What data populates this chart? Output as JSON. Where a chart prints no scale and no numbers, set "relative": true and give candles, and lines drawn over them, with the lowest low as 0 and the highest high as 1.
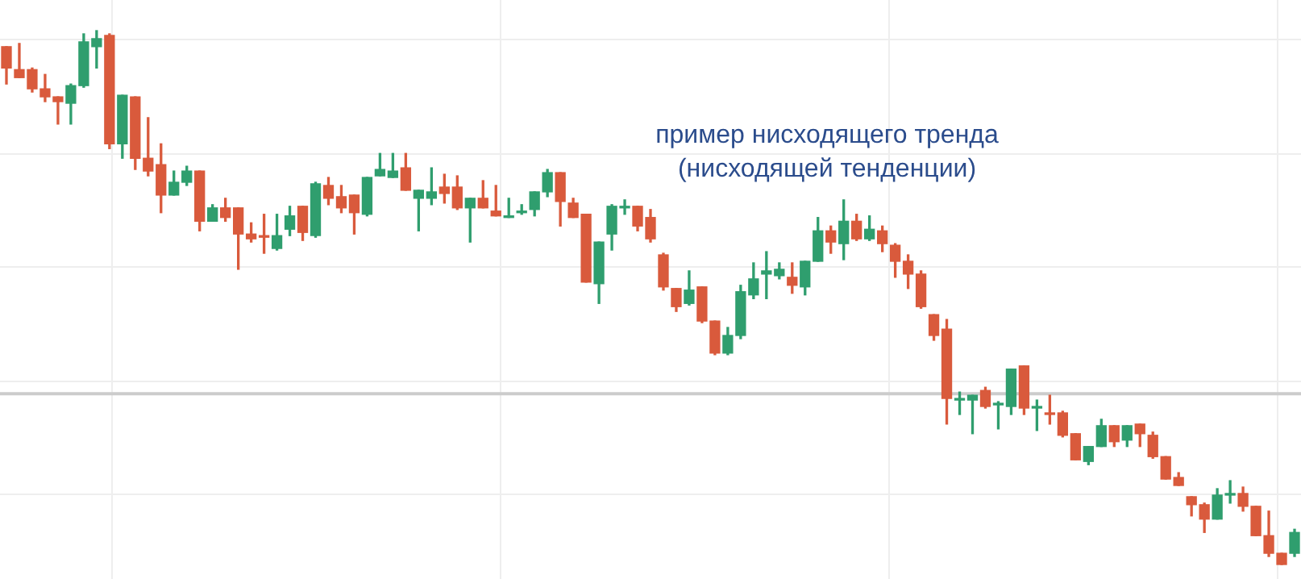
{
  "chart_data": {
    "type": "candlestick",
    "relative": true,
    "tick_labels": false,
    "grid": true,
    "legend": false,
    "annotations": [
      "пример нисходящего тренда\n(нисходящей тенденции)"
    ],
    "ref_lines": [
      {
        "axis": "y",
        "value": 0.32,
        "color": "#cccccc"
      }
    ],
    "categories": [
      null,
      null,
      null,
      null,
      null,
      null,
      null,
      null,
      null,
      null,
      null,
      null,
      null,
      null,
      null,
      null,
      null,
      null,
      null,
      null,
      null,
      null,
      null,
      null,
      null,
      null,
      null,
      null,
      null,
      null,
      null,
      null,
      null,
      null,
      null,
      null,
      null,
      null,
      null,
      null,
      null,
      null,
      null,
      null,
      null,
      null,
      null,
      null,
      null,
      null,
      null,
      null,
      null,
      null,
      null,
      null,
      null,
      null,
      null,
      null,
      null,
      null,
      null,
      null,
      null,
      null,
      null,
      null,
      null,
      null,
      null,
      null,
      null,
      null,
      null,
      null,
      null,
      null,
      null,
      null,
      null,
      null,
      null,
      null,
      null,
      null,
      null,
      null,
      null,
      null,
      null,
      null,
      null,
      null,
      null,
      null,
      null,
      null,
      null,
      null,
      null
    ],
    "ohlc": [
      [
        0.97,
        0.97,
        0.9,
        0.93
      ],
      [
        0.927,
        0.976,
        0.912,
        0.912
      ],
      [
        0.927,
        0.93,
        0.885,
        0.891
      ],
      [
        0.891,
        0.918,
        0.867,
        0.876
      ],
      [
        0.876,
        0.876,
        0.825,
        0.867
      ],
      [
        0.864,
        0.9,
        0.825,
        0.897
      ],
      [
        0.897,
        0.994,
        0.894,
        0.979
      ],
      [
        0.97,
        1,
        0.93,
        0.985
      ],
      [
        0.991,
        0.994,
        0.779,
        0.788
      ],
      [
        0.788,
        0.879,
        0.761,
        0.879
      ],
      [
        0.876,
        0.876,
        0.74,
        0.761
      ],
      [
        0.761,
        0.837,
        0.728,
        0.737
      ],
      [
        0.749,
        0.788,
        0.659,
        0.692
      ],
      [
        0.692,
        0.737,
        0.692,
        0.716
      ],
      [
        0.716,
        0.746,
        0.71,
        0.737
      ],
      [
        0.737,
        0.737,
        0.625,
        0.643
      ],
      [
        0.643,
        0.674,
        0.643,
        0.668
      ],
      [
        0.668,
        0.686,
        0.643,
        0.65
      ],
      [
        0.668,
        0.668,
        0.553,
        0.619
      ],
      [
        0.619,
        0.64,
        0.604,
        0.61
      ],
      [
        0.616,
        0.656,
        0.583,
        0.613
      ],
      [
        0.592,
        0.656,
        0.589,
        0.616
      ],
      [
        0.628,
        0.671,
        0.616,
        0.653
      ],
      [
        0.671,
        0.671,
        0.607,
        0.622
      ],
      [
        0.616,
        0.716,
        0.613,
        0.713
      ],
      [
        0.71,
        0.725,
        0.674,
        0.686
      ],
      [
        0.689,
        0.71,
        0.659,
        0.668
      ],
      [
        0.692,
        0.692,
        0.619,
        0.659
      ],
      [
        0.656,
        0.725,
        0.653,
        0.725
      ],
      [
        0.728,
        0.77,
        0.728,
        0.74
      ],
      [
        0.725,
        0.77,
        0.725,
        0.737
      ],
      [
        0.743,
        0.77,
        0.701,
        0.701
      ],
      [
        0.686,
        0.701,
        0.625,
        0.701
      ],
      [
        0.686,
        0.743,
        0.674,
        0.698
      ],
      [
        0.707,
        0.731,
        0.677,
        0.695
      ],
      [
        0.707,
        0.728,
        0.665,
        0.668
      ],
      [
        0.668,
        0.686,
        0.604,
        0.686
      ],
      [
        0.686,
        0.719,
        0.668,
        0.668
      ],
      [
        0.662,
        0.71,
        0.653,
        0.653
      ],
      [
        0.653,
        0.686,
        0.65,
        0.653
      ],
      [
        0.662,
        0.674,
        0.656,
        0.662
      ],
      [
        0.665,
        0.698,
        0.653,
        0.698
      ],
      [
        0.698,
        0.74,
        0.689,
        0.734
      ],
      [
        0.734,
        0.734,
        0.634,
        0.68
      ],
      [
        0.677,
        0.686,
        0.65,
        0.65
      ],
      [
        0.656,
        0.656,
        0.529,
        0.529
      ],
      [
        0.526,
        0.604,
        0.489,
        0.604
      ],
      [
        0.619,
        0.674,
        0.589,
        0.671
      ],
      [
        0.671,
        0.683,
        0.656,
        0.671
      ],
      [
        0.671,
        0.671,
        0.625,
        0.634
      ],
      [
        0.65,
        0.665,
        0.604,
        0.61
      ],
      [
        0.58,
        0.583,
        0.514,
        0.52
      ],
      [
        0.517,
        0.517,
        0.474,
        0.483
      ],
      [
        0.489,
        0.55,
        0.486,
        0.514
      ],
      [
        0.52,
        0.52,
        0.453,
        0.456
      ],
      [
        0.456,
        0.456,
        0.393,
        0.396
      ],
      [
        0.396,
        0.444,
        0.393,
        0.429
      ],
      [
        0.429,
        0.523,
        0.423,
        0.511
      ],
      [
        0.505,
        0.565,
        0.498,
        0.535
      ],
      [
        0.544,
        0.586,
        0.498,
        0.55
      ],
      [
        0.541,
        0.565,
        0.535,
        0.553
      ],
      [
        0.538,
        0.565,
        0.508,
        0.523
      ],
      [
        0.52,
        0.568,
        0.505,
        0.568
      ],
      [
        0.568,
        0.65,
        0.568,
        0.625
      ],
      [
        0.625,
        0.634,
        0.583,
        0.604
      ],
      [
        0.601,
        0.683,
        0.571,
        0.643
      ],
      [
        0.643,
        0.656,
        0.607,
        0.61
      ],
      [
        0.61,
        0.653,
        0.607,
        0.628
      ],
      [
        0.625,
        0.634,
        0.586,
        0.601
      ],
      [
        0.598,
        0.601,
        0.538,
        0.568
      ],
      [
        0.568,
        0.58,
        0.517,
        0.544
      ],
      [
        0.544,
        0.55,
        0.48,
        0.483
      ],
      [
        0.468,
        0.468,
        0.42,
        0.429
      ],
      [
        0.441,
        0.459,
        0.263,
        0.311
      ],
      [
        0.311,
        0.323,
        0.281,
        0.311
      ],
      [
        0.308,
        0.317,
        0.245,
        0.317
      ],
      [
        0.326,
        0.332,
        0.293,
        0.296
      ],
      [
        0.302,
        0.305,
        0.254,
        0.302
      ],
      [
        0.296,
        0.366,
        0.281,
        0.366
      ],
      [
        0.372,
        0.372,
        0.281,
        0.293
      ],
      [
        0.296,
        0.308,
        0.251,
        0.296
      ],
      [
        0.284,
        0.317,
        0.263,
        0.281
      ],
      [
        0.284,
        0.287,
        0.239,
        0.242
      ],
      [
        0.245,
        0.245,
        0.196,
        0.196
      ],
      [
        0.193,
        0.221,
        0.187,
        0.221
      ],
      [
        0.221,
        0.272,
        0.221,
        0.26
      ],
      [
        0.26,
        0.26,
        0.221,
        0.23
      ],
      [
        0.233,
        0.26,
        0.221,
        0.26
      ],
      [
        0.263,
        0.263,
        0.221,
        0.245
      ],
      [
        0.242,
        0.248,
        0.199,
        0.202
      ],
      [
        0.202,
        0.202,
        0.16,
        0.16
      ],
      [
        0.163,
        0.172,
        0.148,
        0.148
      ],
      [
        0.127,
        0.127,
        0.091,
        0.112
      ],
      [
        0.112,
        0.115,
        0.06,
        0.085
      ],
      [
        0.085,
        0.142,
        0.085,
        0.13
      ],
      [
        0.133,
        0.157,
        0.115,
        0.133
      ],
      [
        0.133,
        0.145,
        0.1,
        0.109
      ],
      [
        0.109,
        0.109,
        0.054,
        0.054
      ],
      [
        0.054,
        0.1,
        0.015,
        0.021
      ],
      [
        0.021,
        0.021,
        0,
        0
      ],
      [
        0.021,
        0.066,
        0.015,
        0.06
      ]
    ]
  }
}
